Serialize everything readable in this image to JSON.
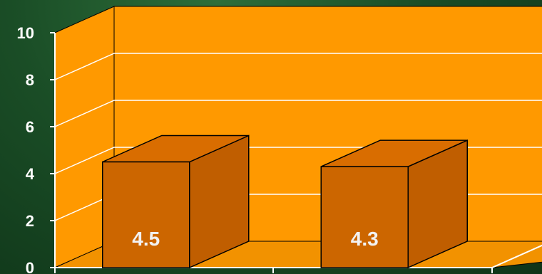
{
  "chart_data": {
    "type": "bar",
    "categories": [
      "",
      ""
    ],
    "values": [
      4.5,
      4.3
    ],
    "data_labels": [
      "4.5",
      "4.3"
    ],
    "ylim": [
      0,
      10
    ],
    "yticks": [
      "0",
      "2",
      "4",
      "6",
      "8",
      "10"
    ],
    "grid": true,
    "legend": "none",
    "colors": {
      "plot_area": "#ff9900",
      "floor": "#f29200",
      "bar_front": "#cc6600",
      "bar_side": "#c05e00",
      "bar_top": "#d96d00",
      "background": "#1a4d26",
      "text": "#ffffff"
    }
  }
}
